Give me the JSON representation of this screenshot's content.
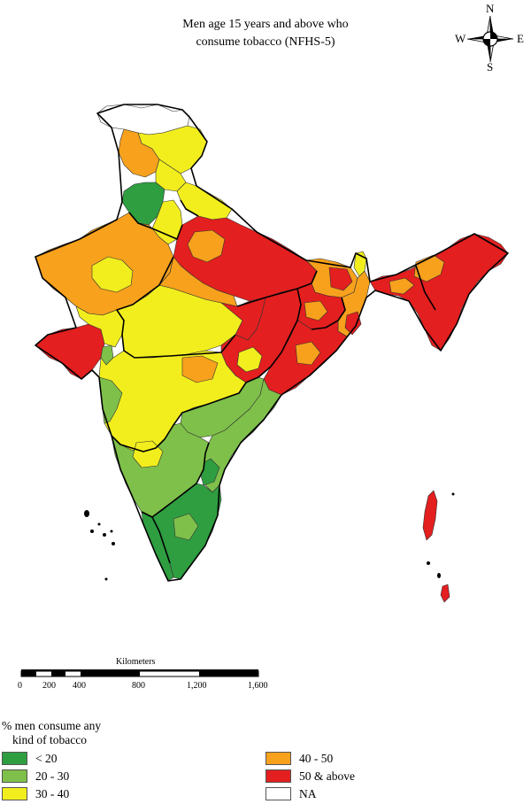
{
  "title_line1": "Men age 15 years and above who",
  "title_line2": "consume tobacco (NFHS-5)",
  "compass": {
    "n": "N",
    "s": "S",
    "e": "E",
    "w": "W"
  },
  "scale": {
    "title": "Kilometers",
    "ticks": [
      "0",
      "200",
      "400",
      "800",
      "1,200",
      "1,600"
    ]
  },
  "legend": {
    "title_line1": "% men consume any",
    "title_line2": "kind of tobacco",
    "items": [
      {
        "label": "< 20",
        "color": "#2e9e41"
      },
      {
        "label": "20 - 30",
        "color": "#7ec04a"
      },
      {
        "label": "30 - 40",
        "color": "#f2ee1e"
      },
      {
        "label": "40 - 50",
        "color": "#f7a11c"
      },
      {
        "label": "50 & above",
        "color": "#e31f1f"
      },
      {
        "label": "NA",
        "color": "#ffffff"
      }
    ]
  }
}
